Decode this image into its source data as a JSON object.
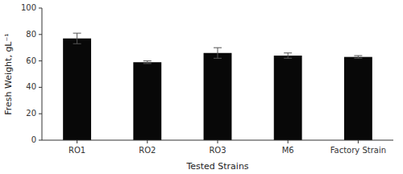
{
  "chart_data": {
    "type": "bar",
    "categories": [
      "RO1",
      "RO2",
      "RO3",
      "M6",
      "Factory Strain"
    ],
    "values": [
      77.0,
      59.0,
      66.0,
      64.0,
      63.0
    ],
    "errors": [
      4.0,
      1.0,
      4.0,
      2.0,
      1.0
    ],
    "color": "#080808",
    "xlabel": "Tested Strains",
    "ylabel": "Fresh Weight, gL⁻¹",
    "ylim": [
      0,
      100
    ],
    "yticks": [
      0,
      20,
      40,
      60,
      80,
      100
    ],
    "grid": false
  }
}
